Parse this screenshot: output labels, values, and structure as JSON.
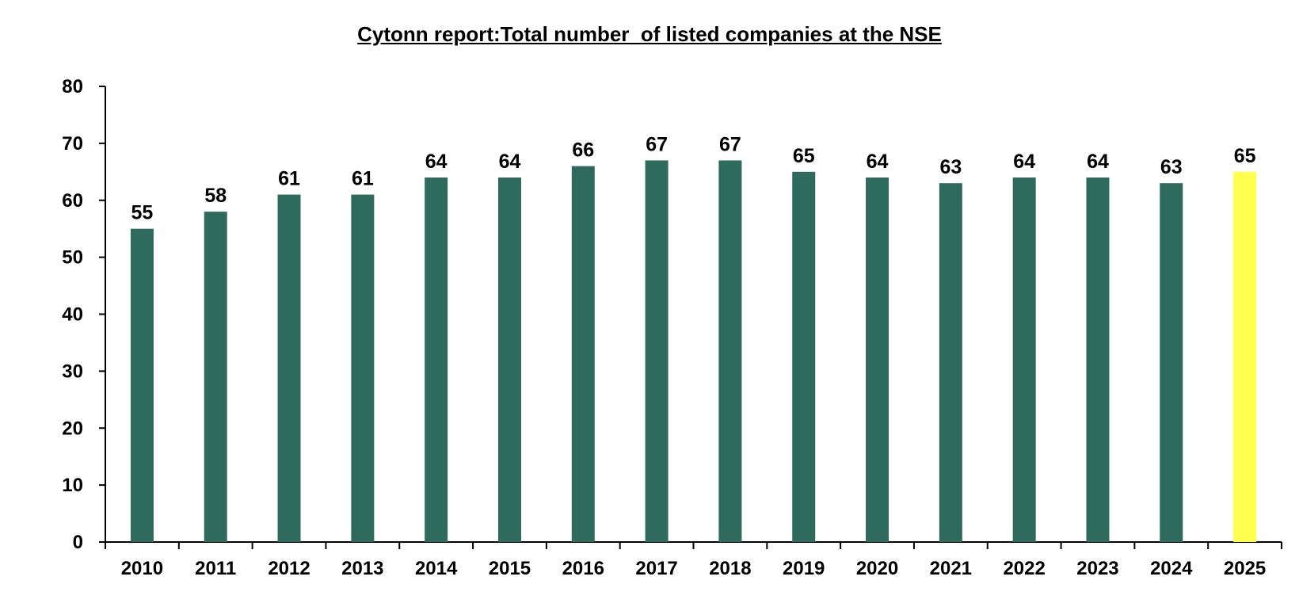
{
  "chart_data": {
    "type": "bar",
    "title": "Cytonn report:Total number  of listed companies at the NSE",
    "xlabel": "",
    "ylabel": "",
    "categories": [
      "2010",
      "2011",
      "2012",
      "2013",
      "2014",
      "2015",
      "2016",
      "2017",
      "2018",
      "2019",
      "2020",
      "2021",
      "2022",
      "2023",
      "2024",
      "2025"
    ],
    "values": [
      55,
      58,
      61,
      61,
      64,
      64,
      66,
      67,
      67,
      65,
      64,
      63,
      64,
      64,
      63,
      65
    ],
    "ylim": [
      0,
      80
    ],
    "yticks": [
      0,
      10,
      20,
      30,
      40,
      50,
      60,
      70,
      80
    ],
    "grid": false,
    "legend": "none",
    "data_labels": true,
    "colors": {
      "bar": "#2E6B5C",
      "highlight_bar": "#FFFF4D",
      "axis": "#000000"
    },
    "highlight_categories": [
      "2025"
    ]
  }
}
